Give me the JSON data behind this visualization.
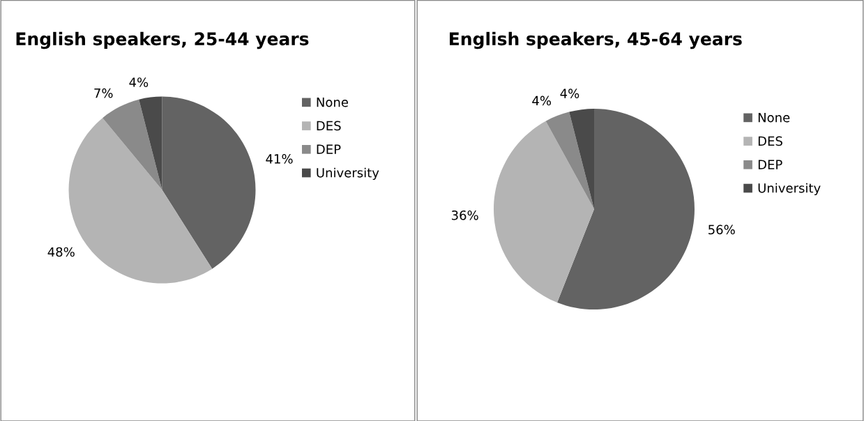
{
  "chart_data": [
    {
      "type": "pie",
      "title": "English speakers, 25-44 years",
      "categories": [
        "None",
        "DES",
        "DEP",
        "University"
      ],
      "values": [
        41,
        48,
        7,
        4
      ],
      "colors": [
        "#636363",
        "#b4b4b4",
        "#8a8a8a",
        "#4a4a4a"
      ],
      "value_labels": [
        "41%",
        "48%",
        "7%",
        "4%"
      ],
      "legend": "right"
    },
    {
      "type": "pie",
      "title": "English speakers, 45-64 years",
      "categories": [
        "None",
        "DES",
        "DEP",
        "University"
      ],
      "values": [
        56,
        36,
        4,
        4
      ],
      "colors": [
        "#636363",
        "#b4b4b4",
        "#8a8a8a",
        "#4a4a4a"
      ],
      "value_labels": [
        "56%",
        "36%",
        "4%",
        "4%"
      ],
      "legend": "right"
    }
  ]
}
